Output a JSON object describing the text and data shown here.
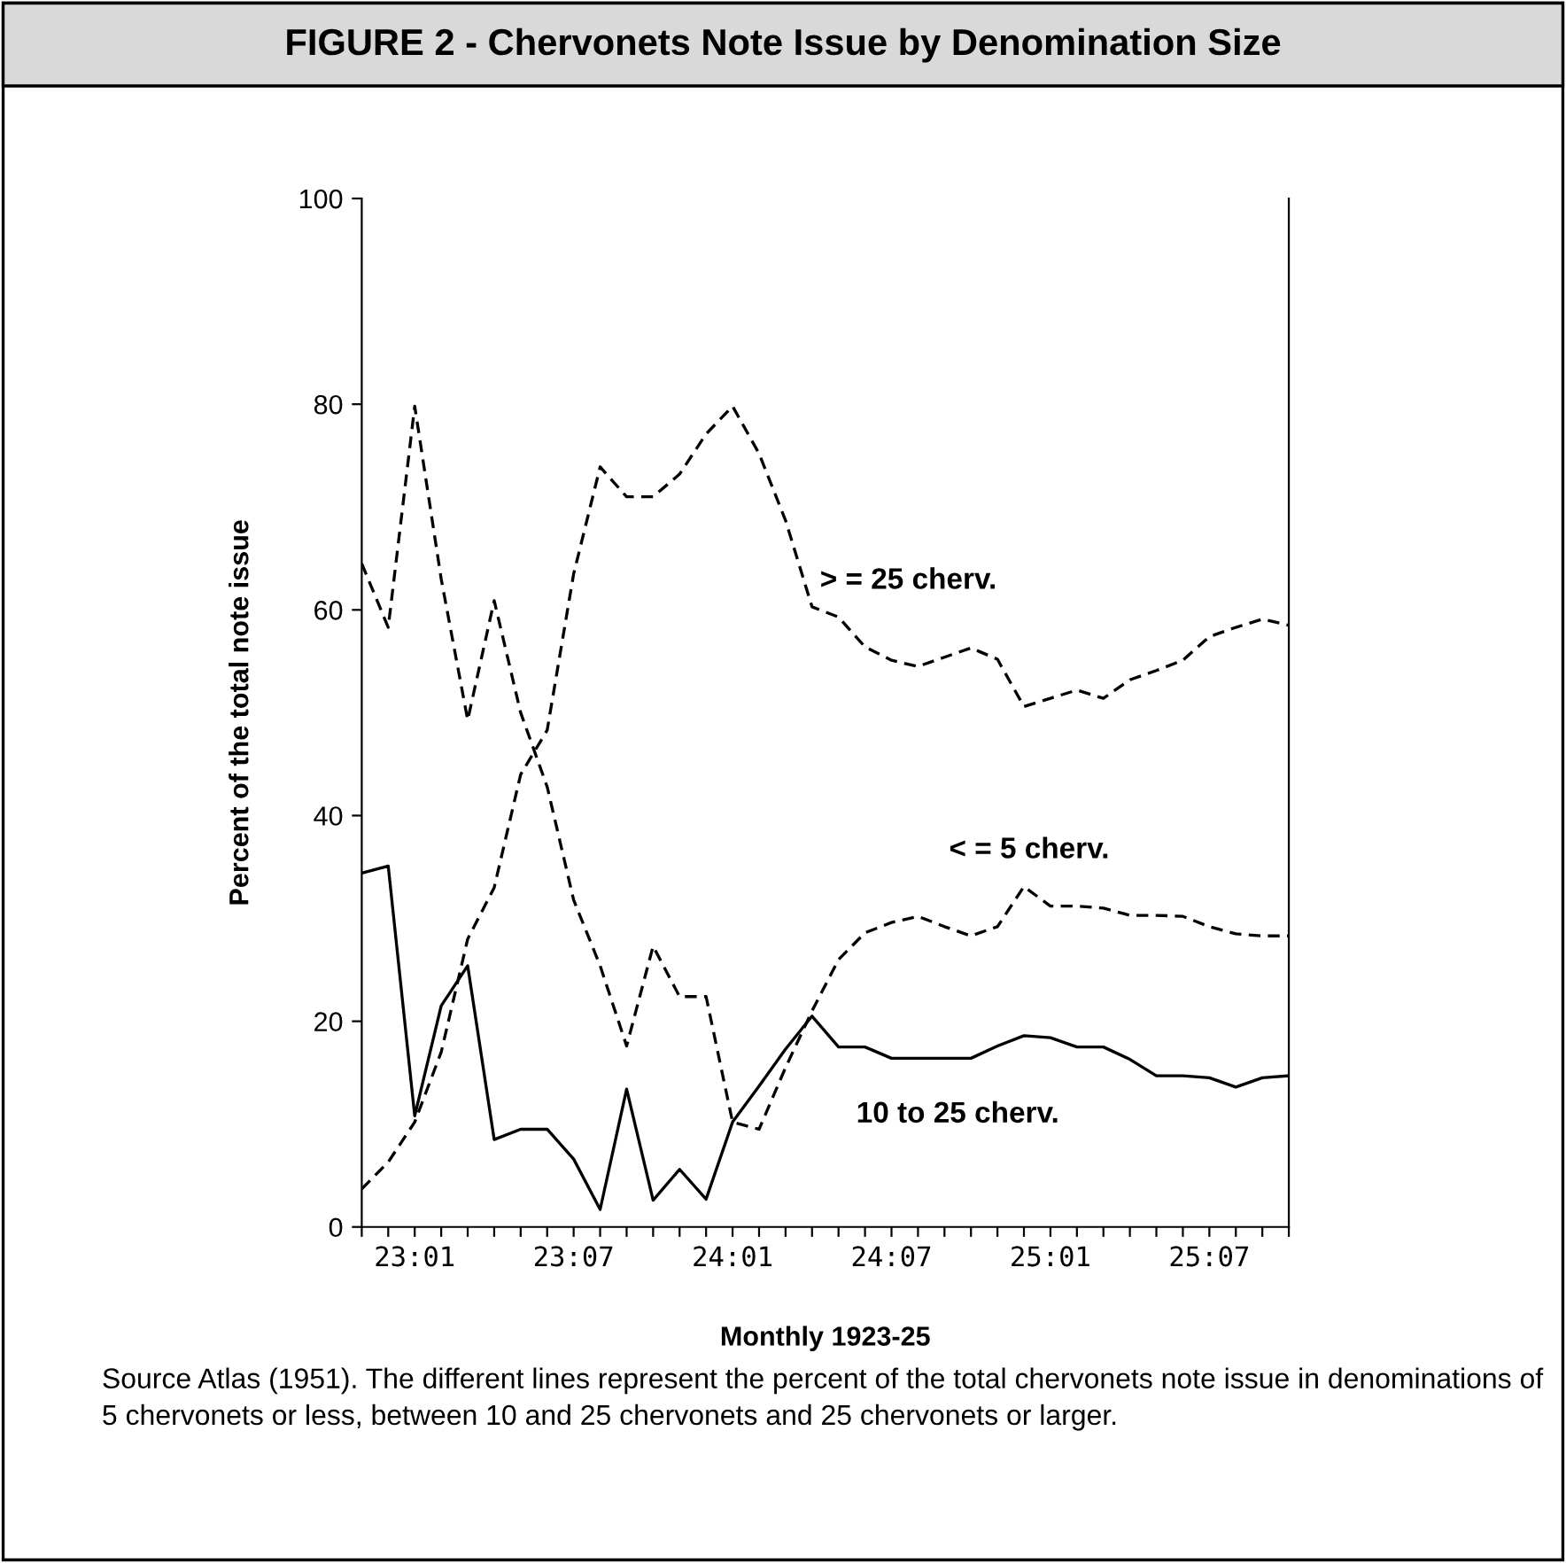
{
  "chart_data": {
    "type": "line",
    "title": "FIGURE 2 - Chervonets Note Issue by Denomination Size",
    "xlabel": "Monthly 1923-25",
    "ylabel": "Percent of the total note issue",
    "categories": [
      null,
      null,
      "23:01",
      null,
      null,
      null,
      null,
      null,
      "23:07",
      null,
      null,
      null,
      null,
      null,
      "24:01",
      null,
      null,
      null,
      null,
      null,
      "24:07",
      null,
      null,
      null,
      null,
      null,
      "25:01",
      null,
      null,
      null,
      null,
      null,
      "25:07",
      null,
      null,
      null
    ],
    "ylim": [
      0,
      100
    ],
    "yticks": [
      0,
      20,
      40,
      60,
      80,
      100
    ],
    "grid": false,
    "legend": false,
    "marker": "none",
    "series": [
      {
        "name": "> = 25 cherv.",
        "color": "#000000",
        "line_style": "dashed",
        "values": [
          3.7,
          6.3,
          10.2,
          17,
          28,
          33,
          44,
          48.3,
          63.5,
          73.9,
          71,
          71,
          73.2,
          77.1,
          79.8,
          75.2,
          68.7,
          60.3,
          59.3,
          56.4,
          55.1,
          54.5,
          55.4,
          56.3,
          55.2,
          50.6,
          51.4,
          52.2,
          51.4,
          53.2,
          54.1,
          55.1,
          57.4,
          58.3,
          59.1,
          58.5
        ]
      },
      {
        "name": "< = 5 cherv.",
        "color": "#000000",
        "line_style": "dashed",
        "values": [
          64.5,
          58.3,
          79.8,
          63,
          49.3,
          60.9,
          50,
          42.8,
          31.8,
          25.4,
          17.6,
          27.3,
          22.4,
          22.4,
          10.2,
          9.5,
          15.5,
          21,
          26,
          28.6,
          29.6,
          30.2,
          29.2,
          28.3,
          29.2,
          33.1,
          31.2,
          31.2,
          31,
          30.3,
          30.3,
          30.2,
          29.2,
          28.5,
          28.3,
          28.3
        ]
      },
      {
        "name": "10 to 25 cherv.",
        "color": "#000000",
        "line_style": "solid",
        "values": [
          34.4,
          35.1,
          10.8,
          21.5,
          25.4,
          8.5,
          9.5,
          9.5,
          6.6,
          1.7,
          13.4,
          2.6,
          5.6,
          2.7,
          10.2,
          13.7,
          17.3,
          20.5,
          17.5,
          17.5,
          16.4,
          16.4,
          16.4,
          16.4,
          17.6,
          18.6,
          18.4,
          17.5,
          17.5,
          16.3,
          14.7,
          14.7,
          14.5,
          13.6,
          14.5,
          14.7
        ]
      }
    ],
    "annotations": [
      "Source Atlas (1951). The different lines represent the percent of the total chervonets note issue in denominations of 5 chervonets or less, between 10 and 25 chervonets and 25 chervonets or larger."
    ]
  }
}
